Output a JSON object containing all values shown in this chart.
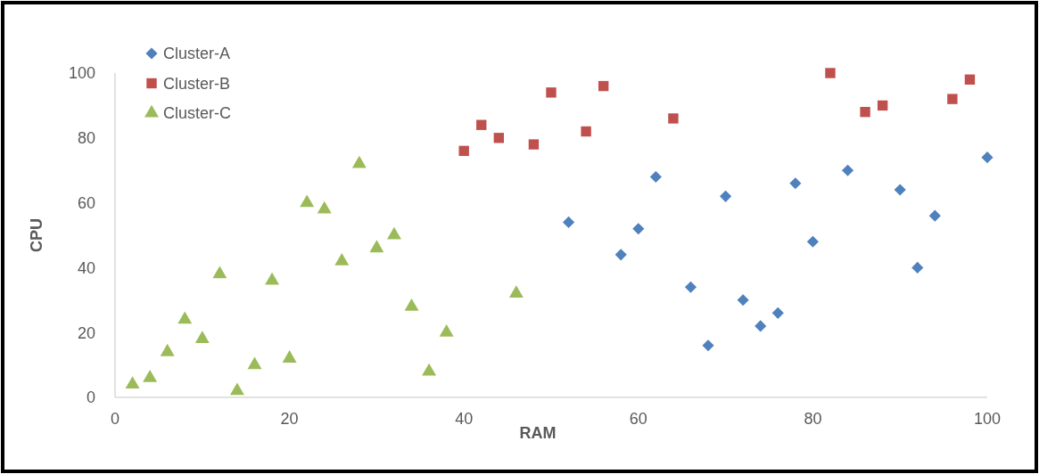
{
  "chart_data": {
    "type": "scatter",
    "xlabel": "RAM",
    "ylabel": "CPU",
    "xlim": [
      0,
      100
    ],
    "ylim": [
      0,
      100
    ],
    "xticks": [
      0,
      20,
      40,
      60,
      80,
      100
    ],
    "yticks": [
      0,
      20,
      40,
      60,
      80,
      100
    ],
    "grid": false,
    "legend": "top left",
    "series": [
      {
        "name": "Cluster-A",
        "color": "#4f81bd",
        "marker": "diamond",
        "x": [
          52,
          58,
          60,
          62,
          66,
          68,
          70,
          72,
          74,
          76,
          78,
          80,
          84,
          90,
          92,
          94,
          100
        ],
        "values": [
          54,
          44,
          52,
          68,
          34,
          16,
          62,
          30,
          22,
          26,
          66,
          48,
          70,
          64,
          40,
          56,
          74
        ]
      },
      {
        "name": "Cluster-B",
        "color": "#c0504d",
        "marker": "square",
        "x": [
          40,
          42,
          44,
          48,
          50,
          54,
          56,
          64,
          82,
          86,
          88,
          96,
          98
        ],
        "values": [
          76,
          84,
          80,
          78,
          94,
          82,
          96,
          86,
          100,
          88,
          90,
          92,
          98
        ]
      },
      {
        "name": "Cluster-C",
        "color": "#9bbb59",
        "marker": "triangle",
        "x": [
          2,
          4,
          6,
          8,
          10,
          12,
          14,
          16,
          18,
          20,
          22,
          24,
          26,
          28,
          30,
          32,
          34,
          36,
          38,
          46
        ],
        "values": [
          4,
          6,
          14,
          24,
          18,
          38,
          2,
          10,
          36,
          12,
          60,
          58,
          42,
          72,
          46,
          50,
          28,
          8,
          20,
          32
        ]
      }
    ]
  }
}
